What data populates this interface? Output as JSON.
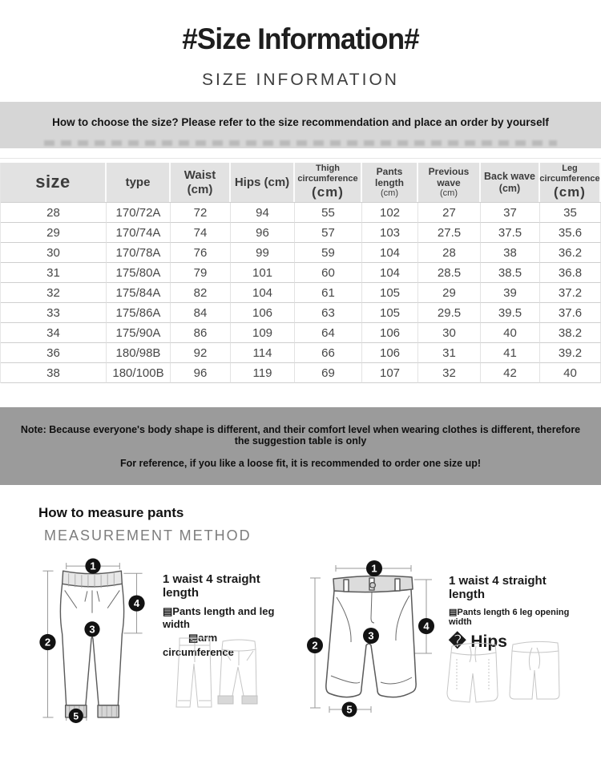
{
  "header": {
    "title": "#Size Information#",
    "subtitle": "SIZE INFORMATION"
  },
  "banner": {
    "text": "How to choose the size? Please refer to the size recommendation and place an order by yourself"
  },
  "size_table": {
    "columns": [
      {
        "lines": [
          "size"
        ]
      },
      {
        "lines": [
          "type"
        ]
      },
      {
        "lines": [
          "Waist (cm)"
        ]
      },
      {
        "lines": [
          "Hips (cm)"
        ]
      },
      {
        "lines": [
          "Thigh circumference",
          "(cm)"
        ]
      },
      {
        "lines": [
          "Pants length",
          "(cm)"
        ]
      },
      {
        "lines": [
          "Previous wave",
          "(cm)"
        ]
      },
      {
        "lines": [
          "Back wave (cm)"
        ]
      },
      {
        "lines": [
          "Leg circumference",
          "(cm)"
        ]
      }
    ],
    "rows": [
      [
        "28",
        "170/72A",
        "72",
        "94",
        "55",
        "102",
        "27",
        "37",
        "35"
      ],
      [
        "29",
        "170/74A",
        "74",
        "96",
        "57",
        "103",
        "27.5",
        "37.5",
        "35.6"
      ],
      [
        "30",
        "170/78A",
        "76",
        "99",
        "59",
        "104",
        "28",
        "38",
        "36.2"
      ],
      [
        "31",
        "175/80A",
        "79",
        "101",
        "60",
        "104",
        "28.5",
        "38.5",
        "36.8"
      ],
      [
        "32",
        "175/84A",
        "82",
        "104",
        "61",
        "105",
        "29",
        "39",
        "37.2"
      ],
      [
        "33",
        "175/86A",
        "84",
        "106",
        "63",
        "105",
        "29.5",
        "39.5",
        "37.6"
      ],
      [
        "34",
        "175/90A",
        "86",
        "109",
        "64",
        "106",
        "30",
        "40",
        "38.2"
      ],
      [
        "36",
        "180/98B",
        "92",
        "114",
        "66",
        "106",
        "31",
        "41",
        "39.2"
      ],
      [
        "38",
        "180/100B",
        "96",
        "119",
        "69",
        "107",
        "32",
        "42",
        "40"
      ]
    ]
  },
  "note": {
    "line1": "Note: Because everyone's body shape is different, and their comfort level when wearing clothes is different, therefore the suggestion table is only",
    "line2": "For reference, if you like a loose fit, it is recommended to order one size up!"
  },
  "measure": {
    "heading": "How to measure pants",
    "subheading": "MEASUREMENT METHOD",
    "left": {
      "line1": "1 waist 4 straight length",
      "line2": "▤Pants length and leg width",
      "line3": "▤arm",
      "line4": "circumference",
      "badges": [
        "1",
        "2",
        "3",
        "4",
        "5"
      ]
    },
    "right": {
      "line1": "1 waist 4 straight length",
      "line2": "▤Pants length 6 leg opening width",
      "line3": "� Hips",
      "badges": [
        "1",
        "2",
        "3",
        "4",
        "5"
      ]
    }
  },
  "colors": {
    "banner_bg": "#d6d6d6",
    "note_bg": "#9b9b9b",
    "table_header_bg": "#e2e2e2",
    "text_dark": "#1e1e1e"
  }
}
